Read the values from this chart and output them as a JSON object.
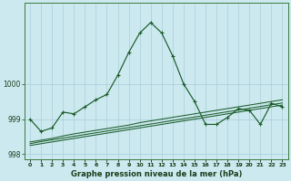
{
  "title": "Graphe pression niveau de la mer (hPa)",
  "background_color": "#cce9f0",
  "grid_color": "#aacdd8",
  "line_color": "#1a5c28",
  "x_labels": [
    "0",
    "1",
    "2",
    "3",
    "4",
    "5",
    "6",
    "7",
    "8",
    "9",
    "10",
    "11",
    "12",
    "13",
    "14",
    "15",
    "16",
    "17",
    "18",
    "19",
    "20",
    "21",
    "22",
    "23"
  ],
  "hours": [
    0,
    1,
    2,
    3,
    4,
    5,
    6,
    7,
    8,
    9,
    10,
    11,
    12,
    13,
    14,
    15,
    16,
    17,
    18,
    19,
    20,
    21,
    22,
    23
  ],
  "ylim": [
    997.85,
    1002.3
  ],
  "yticks": [
    998,
    999,
    1000
  ],
  "series_main": [
    999.0,
    998.65,
    998.75,
    999.2,
    999.15,
    999.35,
    999.55,
    999.7,
    1000.25,
    1000.9,
    1001.45,
    1001.75,
    1001.45,
    1000.8,
    1000.0,
    999.5,
    998.85,
    998.85,
    999.05,
    999.3,
    999.25,
    998.85,
    999.45,
    999.35
  ],
  "series_a": [
    998.35,
    998.4,
    998.45,
    998.52,
    998.58,
    998.63,
    998.68,
    998.73,
    998.78,
    998.83,
    998.9,
    998.95,
    999.0,
    999.05,
    999.1,
    999.15,
    999.2,
    999.25,
    999.3,
    999.35,
    999.4,
    999.45,
    999.5,
    999.55
  ],
  "series_b": [
    998.3,
    998.36,
    998.41,
    998.46,
    998.51,
    998.56,
    998.61,
    998.66,
    998.71,
    998.76,
    998.81,
    998.86,
    998.91,
    998.96,
    999.01,
    999.06,
    999.11,
    999.16,
    999.21,
    999.26,
    999.31,
    999.36,
    999.41,
    999.46
  ],
  "series_c": [
    998.25,
    998.3,
    998.35,
    998.4,
    998.45,
    998.5,
    998.55,
    998.6,
    998.65,
    998.7,
    998.75,
    998.8,
    998.85,
    998.9,
    998.95,
    999.0,
    999.05,
    999.1,
    999.15,
    999.2,
    999.25,
    999.3,
    999.35,
    999.4
  ]
}
